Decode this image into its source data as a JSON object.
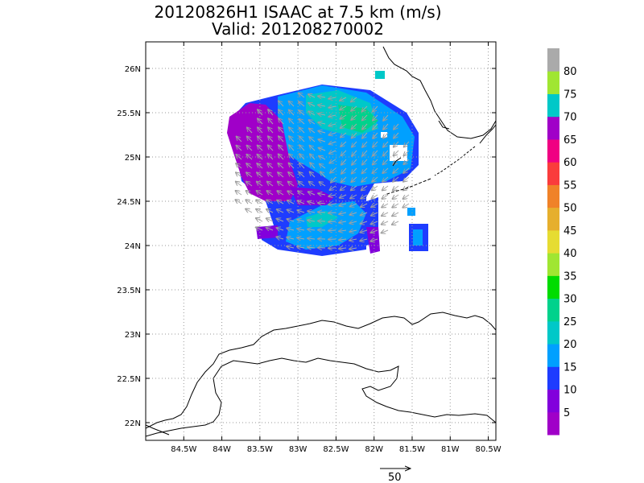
{
  "title_line1": "20120826H1 ISAAC at 7.5 km (m/s)",
  "title_line2": "Valid: 201208270002",
  "map": {
    "lon_range": [
      -85.0,
      -80.4
    ],
    "lat_range": [
      21.8,
      26.3
    ],
    "lon_ticks": [
      {
        "value": -84.5,
        "label": "84.5W"
      },
      {
        "value": -84,
        "label": "84W"
      },
      {
        "value": -83.5,
        "label": "83.5W"
      },
      {
        "value": -83,
        "label": "83W"
      },
      {
        "value": -82.5,
        "label": "82.5W"
      },
      {
        "value": -82,
        "label": "82W"
      },
      {
        "value": -81.5,
        "label": "81.5W"
      },
      {
        "value": -81,
        "label": "81W"
      },
      {
        "value": -80.5,
        "label": "80.5W"
      }
    ],
    "lat_ticks": [
      {
        "value": 22,
        "label": "22N"
      },
      {
        "value": 22.5,
        "label": "22.5N"
      },
      {
        "value": 23,
        "label": "23N"
      },
      {
        "value": 23.5,
        "label": "23.5N"
      },
      {
        "value": 24,
        "label": "24N"
      },
      {
        "value": 24.5,
        "label": "24.5N"
      },
      {
        "value": 25,
        "label": "25N"
      },
      {
        "value": 25.5,
        "label": "25.5N"
      },
      {
        "value": 26,
        "label": "26N"
      }
    ],
    "grid": true
  },
  "colorbar": {
    "colors": [
      "#a000c8",
      "#8200dc",
      "#1e3cff",
      "#00a0ff",
      "#00c8c8",
      "#00d28c",
      "#00dc00",
      "#a0e632",
      "#e6dc32",
      "#e6af2d",
      "#f08228",
      "#fa3c3c",
      "#f00082",
      "#a000c8",
      "#00c8c8",
      "#a0e632",
      "#aaaaaa"
    ],
    "labels": [
      "5",
      "10",
      "15",
      "20",
      "25",
      "30",
      "35",
      "40",
      "45",
      "50",
      "55",
      "60",
      "65",
      "70",
      "75",
      "80"
    ]
  },
  "scale_vector": {
    "label": "50"
  }
}
